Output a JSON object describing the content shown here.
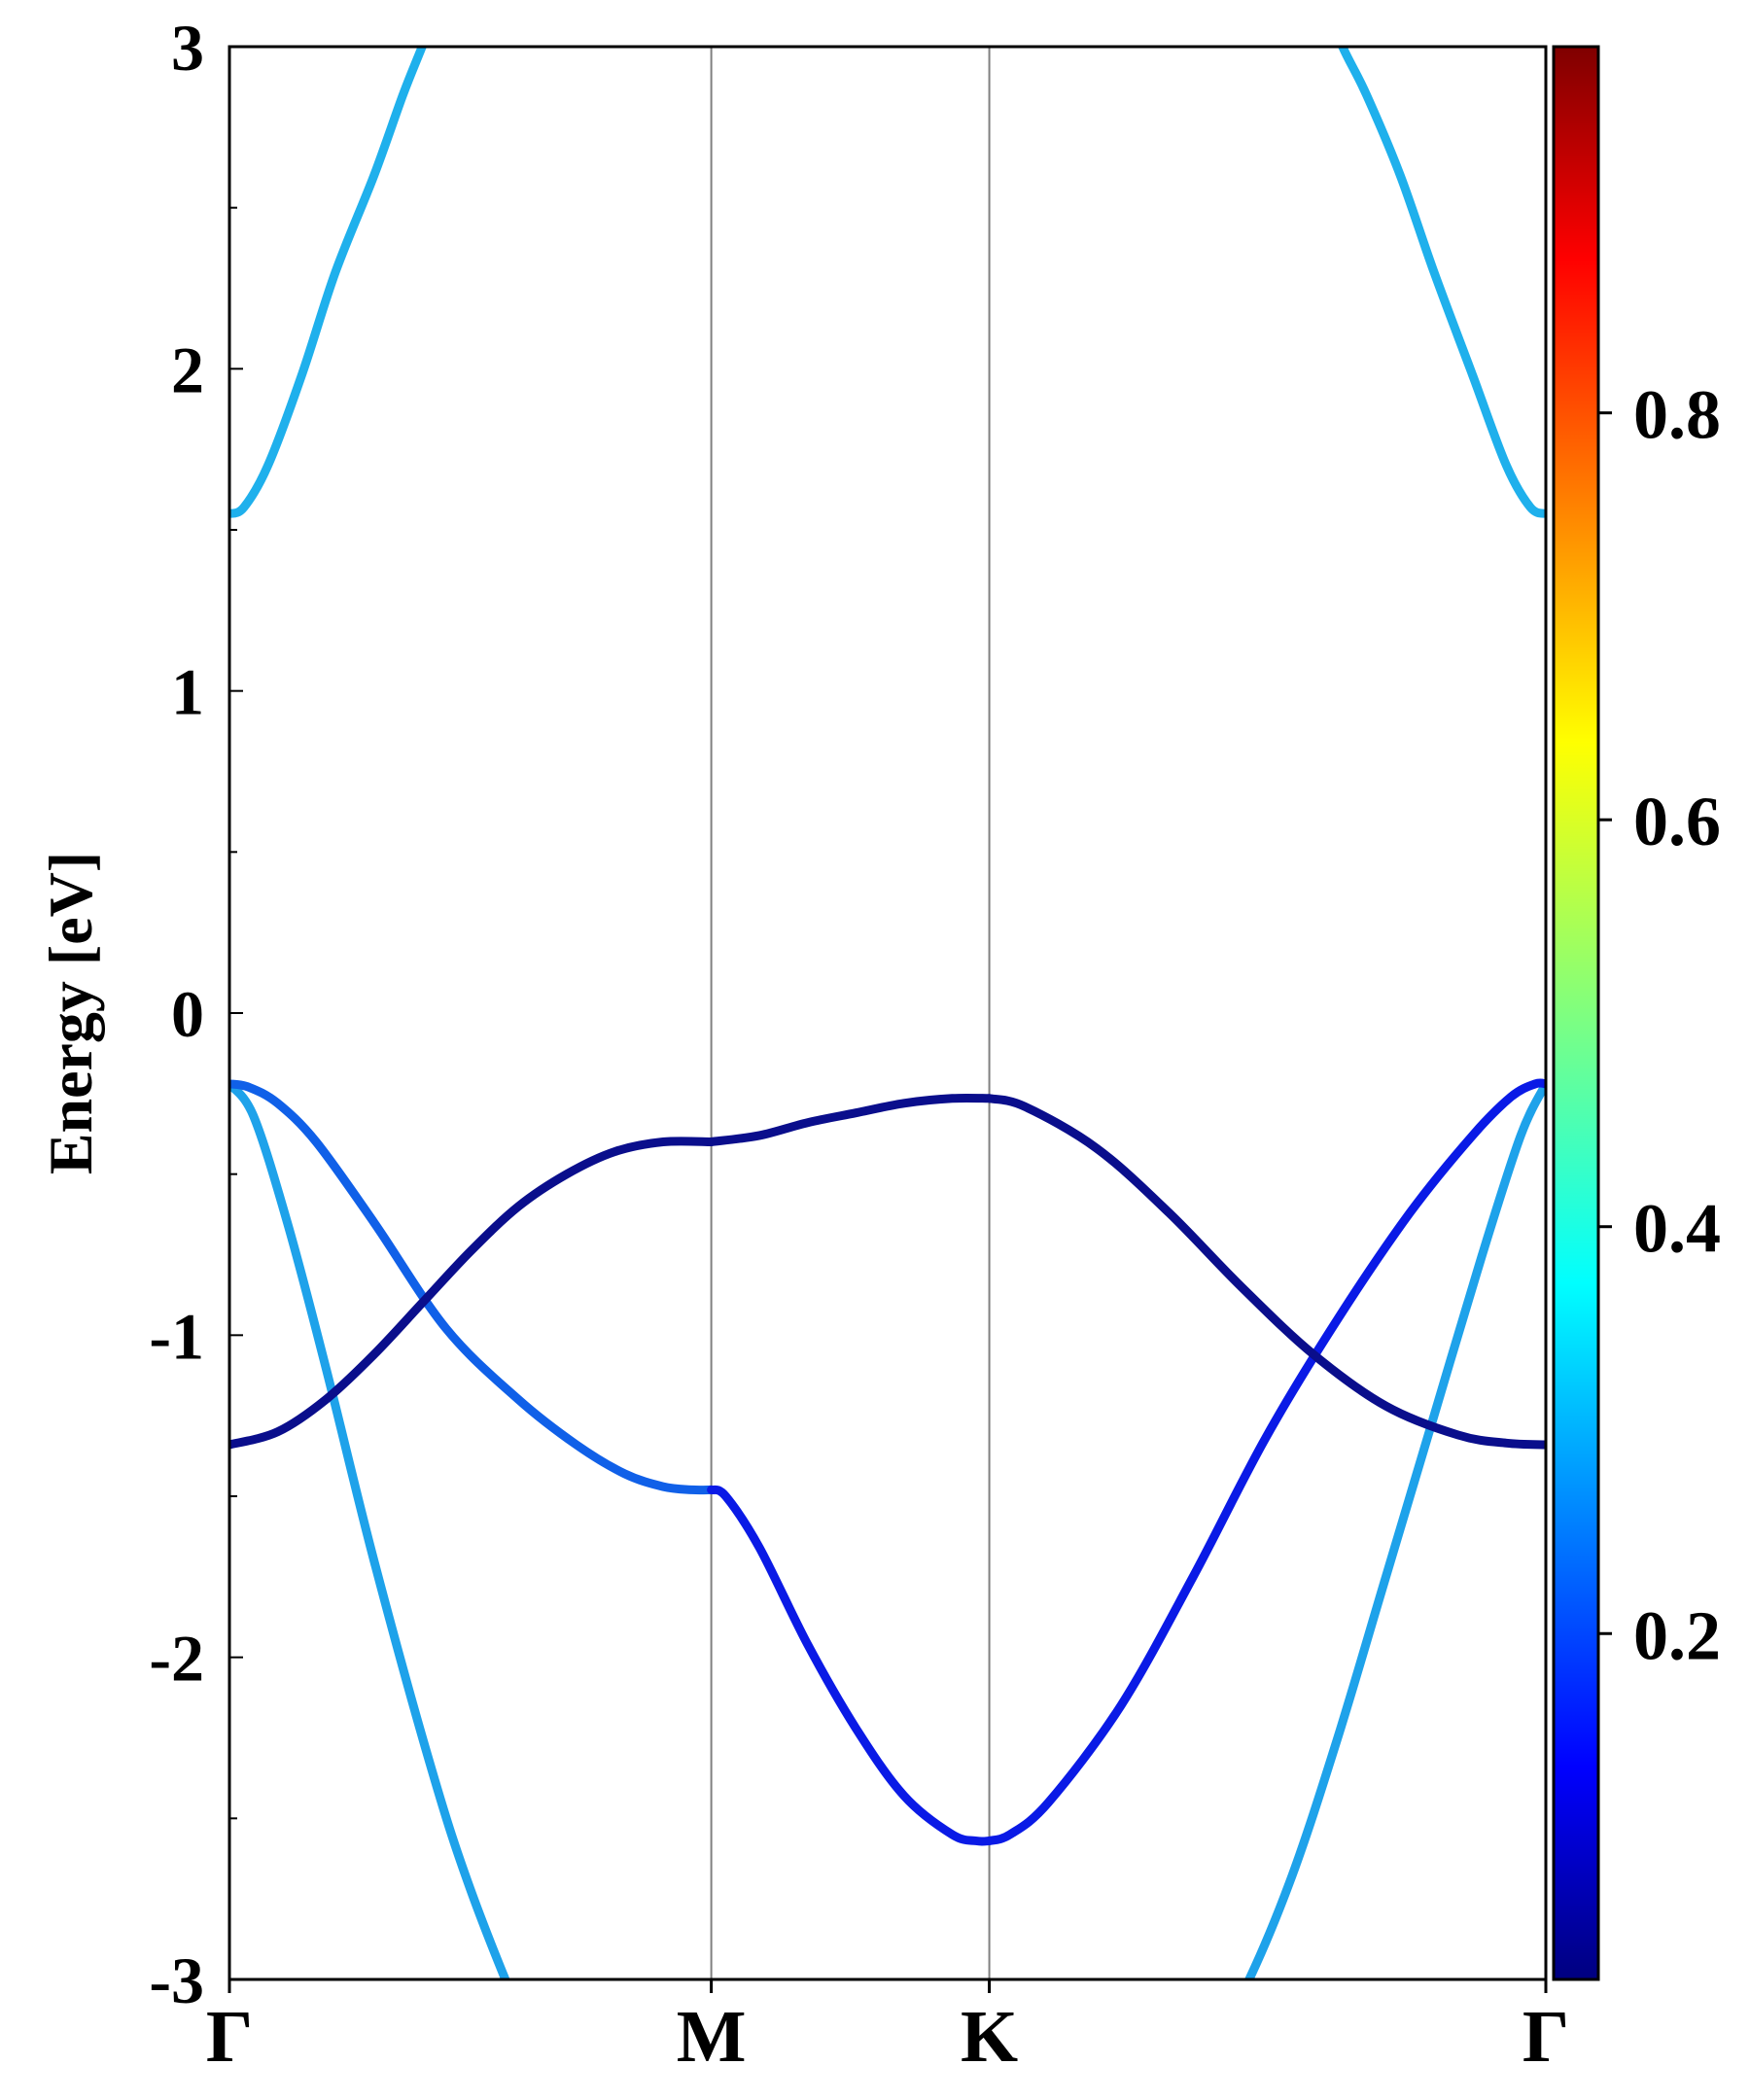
{
  "chart_data": {
    "type": "line",
    "title": "",
    "ylabel": "Energy [eV]",
    "xlabel": "",
    "ylim": [
      -3,
      3
    ],
    "y_ticks": [
      "-3",
      "-2",
      "-1",
      "0",
      "1",
      "2",
      "3"
    ],
    "y_tick_values": [
      -3,
      -2,
      -1,
      0,
      1,
      2,
      3
    ],
    "x_ticks": [
      {
        "label": "Γ",
        "value": 0
      },
      {
        "label": "M",
        "value": 1.0
      },
      {
        "label": "K",
        "value": 1.577
      },
      {
        "label": "Γ",
        "value": 2.732
      }
    ],
    "high_symmetry_lines": [
      1.0,
      1.577
    ],
    "colorbar": {
      "colormap": "jet",
      "range": [
        0.03,
        0.98
      ],
      "tick_labels": [
        "0.2",
        "0.4",
        "0.6",
        "0.8"
      ],
      "tick_values": [
        0.2,
        0.4,
        0.6,
        0.8
      ]
    },
    "series": [
      {
        "color": "#1ea2ea",
        "weight": 0.3,
        "x": [
          0,
          0.05,
          0.12,
          0.2,
          0.3,
          0.42,
          0.5,
          0.6,
          0.66
        ],
        "y": [
          -0.22,
          -0.32,
          -0.65,
          -1.1,
          -1.7,
          -2.35,
          -2.72,
          -3.1,
          -3.3
        ]
      },
      {
        "color": "#1ea2ea",
        "weight": 0.3,
        "x": [
          2.732,
          2.68,
          2.6,
          2.5,
          2.4,
          2.3,
          2.2,
          2.1,
          2.0
        ],
        "y": [
          -0.22,
          -0.38,
          -0.75,
          -1.25,
          -1.75,
          -2.25,
          -2.7,
          -3.05,
          -3.3
        ]
      },
      {
        "color": "#1060e8",
        "weight": 0.18,
        "x": [
          0,
          0.04,
          0.1,
          0.18,
          0.3,
          0.45,
          0.6,
          0.72,
          0.82,
          0.9,
          0.96,
          1.0
        ],
        "y": [
          -0.22,
          -0.23,
          -0.28,
          -0.4,
          -0.65,
          -0.98,
          -1.2,
          -1.34,
          -1.43,
          -1.47,
          -1.48,
          -1.48
        ]
      },
      {
        "color": "#0a1ae6",
        "weight": 0.1,
        "x": [
          1.0,
          1.03,
          1.1,
          1.2,
          1.3,
          1.4,
          1.5,
          1.55,
          1.577
        ],
        "y": [
          -1.48,
          -1.5,
          -1.66,
          -1.96,
          -2.22,
          -2.43,
          -2.55,
          -2.57,
          -2.57
        ]
      },
      {
        "color": "#0a1ae6",
        "weight": 0.1,
        "x": [
          1.577,
          1.62,
          1.7,
          1.85,
          2.0,
          2.15,
          2.3,
          2.45,
          2.58,
          2.66,
          2.71,
          2.732
        ],
        "y": [
          -2.57,
          -2.55,
          -2.45,
          -2.15,
          -1.75,
          -1.32,
          -0.95,
          -0.62,
          -0.38,
          -0.26,
          -0.22,
          -0.22
        ]
      },
      {
        "color": "#0a0e8c",
        "weight": 0.04,
        "x": [
          0,
          0.1,
          0.2,
          0.3,
          0.4,
          0.5,
          0.6,
          0.7,
          0.8,
          0.9,
          1.0
        ],
        "y": [
          -1.34,
          -1.3,
          -1.2,
          -1.06,
          -0.9,
          -0.74,
          -0.6,
          -0.5,
          -0.43,
          -0.4,
          -0.4
        ]
      },
      {
        "color": "#0a0e8c",
        "weight": 0.04,
        "x": [
          1.0,
          1.1,
          1.2,
          1.3,
          1.4,
          1.5,
          1.577
        ],
        "y": [
          -0.4,
          -0.38,
          -0.34,
          -0.31,
          -0.28,
          -0.265,
          -0.265
        ]
      },
      {
        "color": "#0a0e8c",
        "weight": 0.04,
        "x": [
          1.577,
          1.65,
          1.8,
          1.95,
          2.1,
          2.25,
          2.4,
          2.55,
          2.65,
          2.732
        ],
        "y": [
          -0.265,
          -0.29,
          -0.42,
          -0.62,
          -0.85,
          -1.06,
          -1.22,
          -1.31,
          -1.335,
          -1.34
        ]
      },
      {
        "color": "#1fb0ec",
        "weight": 0.32,
        "x": [
          0,
          0.03,
          0.08,
          0.15,
          0.22,
          0.3,
          0.36,
          0.4,
          0.44
        ],
        "y": [
          1.55,
          1.57,
          1.7,
          1.98,
          2.3,
          2.6,
          2.85,
          3.0,
          3.15
        ]
      },
      {
        "color": "#1fb0ec",
        "weight": 0.32,
        "x": [
          2.732,
          2.7,
          2.65,
          2.58,
          2.5,
          2.43,
          2.36,
          2.31,
          2.27
        ],
        "y": [
          1.55,
          1.57,
          1.7,
          1.98,
          2.3,
          2.6,
          2.85,
          3.0,
          3.15
        ]
      }
    ]
  }
}
